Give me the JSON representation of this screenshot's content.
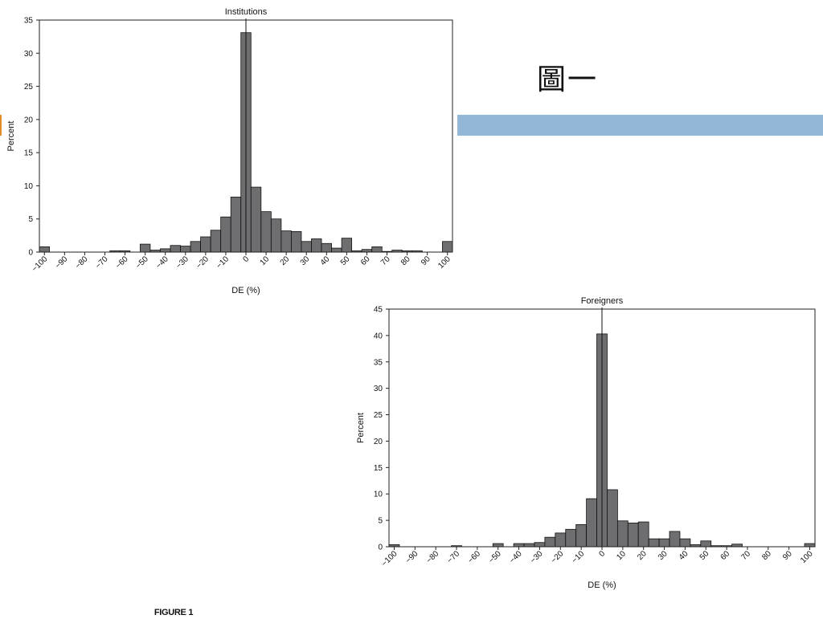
{
  "annotation_text": "圖一",
  "accent_bar_color": "#93b6d6",
  "figure_caption": "FIGURE 1",
  "bar_color": "#6e6e70",
  "chart_data": [
    {
      "type": "bar",
      "title": "Institutions",
      "xlabel": "DE (%)",
      "ylabel": "Percent",
      "ylim": [
        0,
        35
      ],
      "yticks": [
        0,
        5,
        10,
        15,
        20,
        25,
        30,
        35
      ],
      "xlim": [
        -102.5,
        102.5
      ],
      "xticks": [
        -100,
        -90,
        -80,
        -70,
        -60,
        -50,
        -40,
        -30,
        -20,
        -10,
        0,
        10,
        20,
        30,
        40,
        50,
        60,
        70,
        80,
        90,
        100
      ],
      "xtick_labels": [
        "−100",
        "−90",
        "−80",
        "−70",
        "−60",
        "−50",
        "−40",
        "−30",
        "−20",
        "−10",
        "0",
        "10",
        "20",
        "30",
        "40",
        "50",
        "60",
        "70",
        "80",
        "90",
        "100"
      ],
      "bin_width": 5,
      "reference_line_x": 0,
      "bins": [
        -100,
        -95,
        -90,
        -85,
        -80,
        -75,
        -70,
        -65,
        -60,
        -55,
        -50,
        -45,
        -40,
        -35,
        -30,
        -25,
        -20,
        -15,
        -10,
        -5,
        0,
        5,
        10,
        15,
        20,
        25,
        30,
        35,
        40,
        45,
        50,
        55,
        60,
        65,
        70,
        75,
        80,
        85,
        90,
        95,
        100
      ],
      "values": [
        0.8,
        0,
        0,
        0,
        0,
        0,
        0,
        0.2,
        0.2,
        0,
        1.2,
        0.3,
        0.5,
        1.0,
        0.9,
        1.6,
        2.3,
        3.3,
        5.3,
        8.3,
        33.1,
        9.8,
        6.1,
        5.0,
        3.2,
        3.1,
        1.6,
        2.0,
        1.3,
        0.6,
        2.1,
        0.2,
        0.4,
        0.8,
        0.1,
        0.3,
        0.2,
        0.2,
        0,
        0,
        1.6
      ]
    },
    {
      "type": "bar",
      "title": "Foreigners",
      "xlabel": "DE (%)",
      "ylabel": "Percent",
      "ylim": [
        0,
        45
      ],
      "yticks": [
        0,
        5,
        10,
        15,
        20,
        25,
        30,
        35,
        40,
        45
      ],
      "xlim": [
        -102.5,
        102.5
      ],
      "xticks": [
        -100,
        -90,
        -80,
        -70,
        -60,
        -50,
        -40,
        -30,
        -20,
        -10,
        0,
        10,
        20,
        30,
        40,
        50,
        60,
        70,
        80,
        90,
        100
      ],
      "xtick_labels": [
        "−100",
        "−90",
        "−80",
        "−70",
        "−60",
        "−50",
        "−40",
        "−30",
        "−20",
        "−10",
        "0",
        "10",
        "20",
        "30",
        "40",
        "50",
        "60",
        "70",
        "80",
        "90",
        "100"
      ],
      "bin_width": 5,
      "reference_line_x": 0,
      "bins": [
        -100,
        -95,
        -90,
        -85,
        -80,
        -75,
        -70,
        -65,
        -60,
        -55,
        -50,
        -45,
        -40,
        -35,
        -30,
        -25,
        -20,
        -15,
        -10,
        -5,
        0,
        5,
        10,
        15,
        20,
        25,
        30,
        35,
        40,
        45,
        50,
        55,
        60,
        65,
        70,
        75,
        80,
        85,
        90,
        95,
        100
      ],
      "values": [
        0.4,
        0,
        0,
        0,
        0,
        0,
        0.2,
        0,
        0,
        0,
        0.6,
        0,
        0.6,
        0.6,
        0.8,
        1.8,
        2.6,
        3.3,
        4.2,
        9.1,
        40.3,
        10.8,
        4.9,
        4.5,
        4.7,
        1.5,
        1.5,
        2.9,
        1.5,
        0.4,
        1.1,
        0.2,
        0.2,
        0.5,
        0,
        0,
        0,
        0,
        0,
        0,
        0.6
      ]
    }
  ]
}
